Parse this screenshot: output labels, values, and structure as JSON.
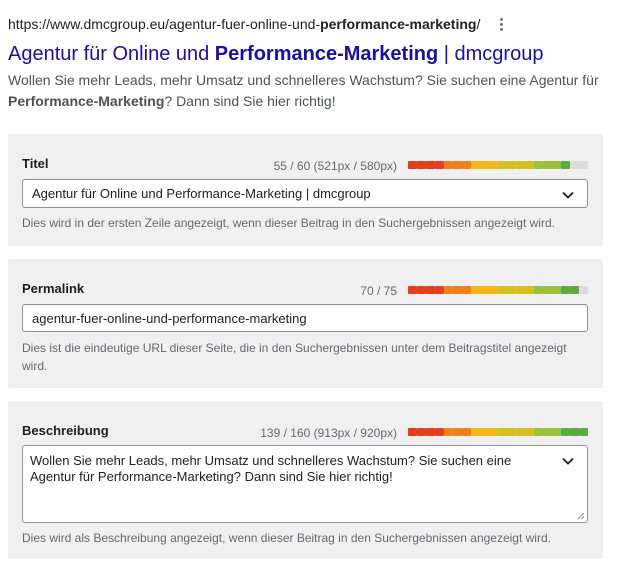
{
  "serp": {
    "url_prefix": "https://www.dmcgroup.eu/agentur-fuer-online-und-",
    "url_bold": "performance-marketing",
    "url_suffix": "/",
    "title_prefix": "Agentur für Online und ",
    "title_bold": "Performance-Marketing",
    "title_suffix": " | dmcgroup",
    "desc_part1": "Wollen Sie mehr Leads, mehr Umsatz und schnelleres Wachstum? Sie suchen eine Agentur für ",
    "desc_bold": "Performance-Marketing",
    "desc_part2": "? Dann sind Sie hier richtig!",
    "menu_icon": "more-vertical-icon"
  },
  "title_panel": {
    "label": "Titel",
    "counter": "55 / 60 (521px / 580px)",
    "value": "Agentur für Online und Performance-Marketing | dmcgroup",
    "help": "Dies wird in der ersten Zeile angezeigt, wenn dieser Beitrag in den Suchergebnissen angezeigt wird.",
    "fill": 0.9
  },
  "permalink_panel": {
    "label": "Permalink",
    "counter": "70 / 75",
    "value": "agentur-fuer-online-und-performance-marketing",
    "help": "Dies ist die eindeutige URL dieser Seite, die in den Suchergebnissen unter dem Beitragstitel angezeigt wird.",
    "fill": 0.93
  },
  "description_panel": {
    "label": "Beschreibung",
    "counter": "139 / 160 (913px / 920px)",
    "value": "Wollen Sie mehr Leads, mehr Umsatz und schnelleres Wachstum? Sie suchen eine Agentur für Performance-Marketing? Dann sind Sie hier richtig!",
    "help": "Dies wird als Beschreibung angezeigt, wenn dieser Beitrag in den Suchergebnissen angezeigt wird.",
    "fill": 1.0
  },
  "colors": {
    "bar_segments": [
      "#e2401c",
      "#f0811a",
      "#f4b619",
      "#d4c01e",
      "#9dc03a",
      "#5ba943"
    ],
    "bar_empty": "#dcdcde",
    "link": "#1a0dab"
  }
}
